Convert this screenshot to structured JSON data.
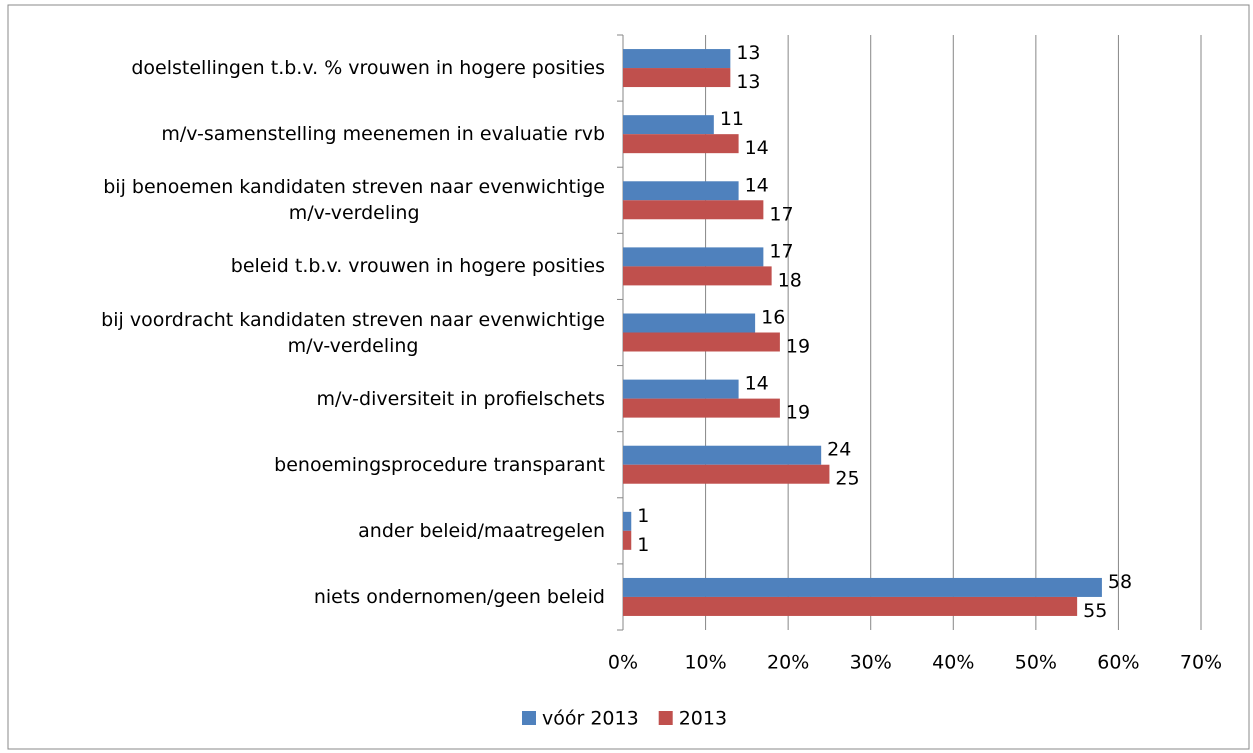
{
  "chart_data": {
    "type": "bar",
    "orientation": "horizontal",
    "categories": [
      "doelstellingen t.b.v. % vrouwen in hogere posities",
      "m/v-samenstelling meenemen in evaluatie rvb",
      "bij benoemen kandidaten streven naar evenwichtige\nm/v-verdeling",
      "beleid t.b.v. vrouwen in hogere posities",
      "bij voordracht kandidaten streven naar evenwichtige\nm/v-verdeling",
      "m/v-diversiteit in profielschets",
      "benoemingsprocedure transparant",
      "ander beleid/maatregelen",
      "niets ondernomen/geen beleid"
    ],
    "series": [
      {
        "name": "vóór 2013",
        "color": "#4f81bd",
        "values": [
          13,
          11,
          14,
          17,
          16,
          14,
          24,
          1,
          58
        ]
      },
      {
        "name": "2013",
        "color": "#c0504d",
        "values": [
          13,
          14,
          17,
          18,
          19,
          19,
          25,
          1,
          55
        ]
      }
    ],
    "xlim": [
      0,
      70
    ],
    "xticks": [
      {
        "value": 0,
        "label": "0%"
      },
      {
        "value": 10,
        "label": "10%"
      },
      {
        "value": 20,
        "label": "20%"
      },
      {
        "value": 30,
        "label": "30%"
      },
      {
        "value": 40,
        "label": "40%"
      },
      {
        "value": 50,
        "label": "50%"
      },
      {
        "value": 60,
        "label": "60%"
      },
      {
        "value": 70,
        "label": "70%"
      }
    ],
    "grid": true,
    "legend": "bottom"
  }
}
